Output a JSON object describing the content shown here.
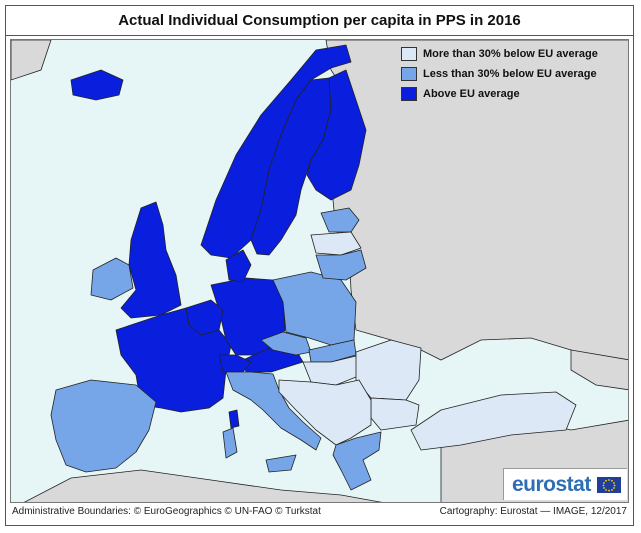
{
  "title": "Actual Individual Consumption per capita in PPS in 2016",
  "colors": {
    "sea": "#e6f6f7",
    "non_eu": "#d9d9d9",
    "border": "#222222",
    "cat_low": "#dde8f6",
    "cat_mid": "#76a6e7",
    "cat_high": "#0a1fde",
    "logo": "#2d6eb5"
  },
  "legend": {
    "items": [
      {
        "label": "More than 30% below EU average",
        "color": "#dde8f6"
      },
      {
        "label": "Less than 30% below EU average",
        "color": "#76a6e7"
      },
      {
        "label": "Above EU average",
        "color": "#0a1fde"
      }
    ]
  },
  "map": {
    "categories": [
      "low",
      "mid",
      "high"
    ],
    "features": [
      {
        "name": "norway",
        "cat": "high"
      },
      {
        "name": "sweden",
        "cat": "high"
      },
      {
        "name": "finland",
        "cat": "high"
      },
      {
        "name": "iceland",
        "cat": "high"
      },
      {
        "name": "uk",
        "cat": "high"
      },
      {
        "name": "ireland",
        "cat": "mid"
      },
      {
        "name": "france",
        "cat": "high"
      },
      {
        "name": "germany",
        "cat": "high"
      },
      {
        "name": "benelux",
        "cat": "high"
      },
      {
        "name": "denmark",
        "cat": "high"
      },
      {
        "name": "austria",
        "cat": "high"
      },
      {
        "name": "switzerland",
        "cat": "high"
      },
      {
        "name": "spain-portugal",
        "cat": "mid"
      },
      {
        "name": "italy",
        "cat": "mid"
      },
      {
        "name": "czechia",
        "cat": "mid"
      },
      {
        "name": "poland",
        "cat": "mid"
      },
      {
        "name": "estonia",
        "cat": "mid"
      },
      {
        "name": "latvia",
        "cat": "low"
      },
      {
        "name": "lithuania",
        "cat": "mid"
      },
      {
        "name": "slovakia",
        "cat": "mid"
      },
      {
        "name": "hungary",
        "cat": "low"
      },
      {
        "name": "romania",
        "cat": "low"
      },
      {
        "name": "bulgaria",
        "cat": "low"
      },
      {
        "name": "western-balkans",
        "cat": "low"
      },
      {
        "name": "greece",
        "cat": "mid"
      },
      {
        "name": "turkey",
        "cat": "low"
      },
      {
        "name": "sardinia",
        "cat": "mid"
      },
      {
        "name": "corsica",
        "cat": "high"
      },
      {
        "name": "sicily",
        "cat": "mid"
      }
    ]
  },
  "logo": {
    "text": "eurostat"
  },
  "footer": {
    "left": "Administrative Boundaries: © EuroGeographics © UN-FAO © Turkstat",
    "right": "Cartography: Eurostat — IMAGE, 12/2017"
  }
}
